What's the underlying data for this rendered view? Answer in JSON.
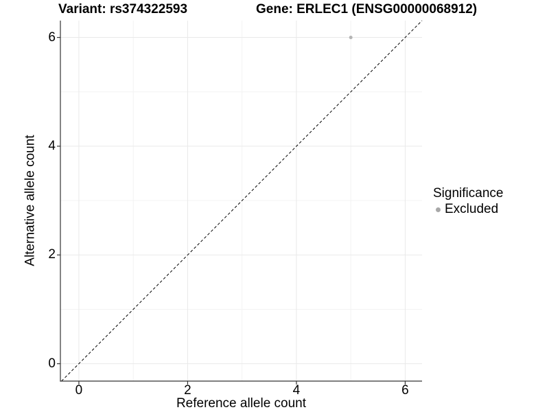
{
  "chart_data": {
    "type": "scatter",
    "title_left": "Variant: rs374322593",
    "title_right": "Gene: ERLEC1 (ENSG00000068912)",
    "xlabel": "Reference allele count",
    "ylabel": "Alternative allele count",
    "xlim": [
      -0.34,
      6.31
    ],
    "ylim": [
      -0.32,
      6.31
    ],
    "x_ticks": [
      0,
      2,
      4,
      6
    ],
    "y_ticks": [
      0,
      2,
      4,
      6
    ],
    "x_minor_ticks": [
      1,
      3,
      5
    ],
    "y_minor_ticks": [
      1,
      3,
      5
    ],
    "grid": "major-and-minor",
    "series": [
      {
        "name": "Excluded",
        "color": "#b5b5b5",
        "marker": "circle",
        "points": [
          {
            "x": 5,
            "y": 6
          }
        ]
      }
    ],
    "reference_line": {
      "slope": 1,
      "intercept": 0,
      "style": "dashed",
      "color": "#000000"
    },
    "legend": {
      "title": "Significance",
      "position": "right",
      "items": [
        {
          "label": "Excluded",
          "color": "#a8a8a8"
        }
      ]
    },
    "style": {
      "background": "#ffffff",
      "grid_major_color": "#e9e9e9",
      "grid_minor_color": "#f3f3f3",
      "axis_color": "#333333",
      "text_color": "#000000"
    }
  }
}
